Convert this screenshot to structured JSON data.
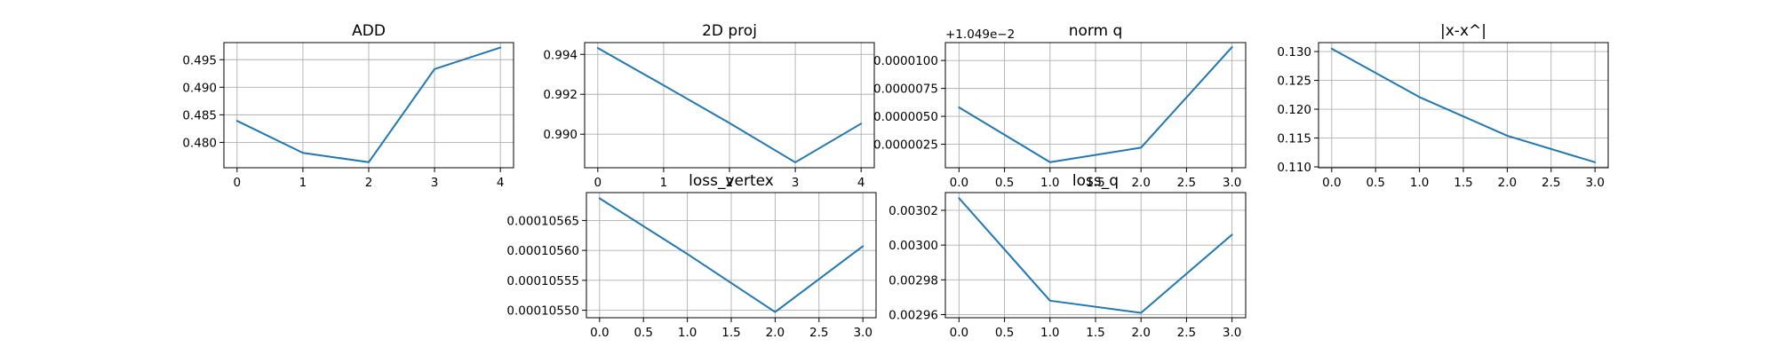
{
  "style": {
    "line_color": "#1f77b4",
    "grid_color": "#b0b0b0",
    "background": "#ffffff"
  },
  "chart_data": [
    {
      "type": "line",
      "title": "ADD",
      "x": [
        0,
        1,
        2,
        3,
        4
      ],
      "values": [
        0.4839,
        0.4781,
        0.4764,
        0.4933,
        0.4972
      ],
      "xlim": [
        -0.2,
        4.2
      ],
      "ylim": [
        0.4754,
        0.4981
      ],
      "xticks": [
        0,
        1,
        2,
        3,
        4
      ],
      "xtick_labels": [
        "0",
        "1",
        "2",
        "3",
        "4"
      ],
      "yticks": [
        0.48,
        0.485,
        0.49,
        0.495
      ],
      "ytick_labels": [
        "0.480",
        "0.485",
        "0.490",
        "0.495"
      ],
      "grid": true
    },
    {
      "type": "line",
      "title": "2D proj",
      "x": [
        0,
        1,
        2,
        3,
        4
      ],
      "values": [
        0.99432,
        0.99245,
        0.99056,
        0.98859,
        0.99053
      ],
      "xlim": [
        -0.2,
        4.2
      ],
      "ylim": [
        0.98832,
        0.99459
      ],
      "xticks": [
        0,
        1,
        2,
        3,
        4
      ],
      "xtick_labels": [
        "0",
        "1",
        "2",
        "3",
        "4"
      ],
      "yticks": [
        0.99,
        0.992,
        0.994
      ],
      "ytick_labels": [
        "0.990",
        "0.992",
        "0.994"
      ],
      "grid": true
    },
    {
      "type": "line",
      "title": "norm q",
      "offset_text": "+1.049e−2",
      "x": [
        0,
        1,
        2,
        3
      ],
      "values": [
        5.8e-06,
        9e-07,
        2.2e-06,
        1.12e-05
      ],
      "xlim": [
        -0.15,
        3.15
      ],
      "ylim": [
        4e-07,
        1.16e-05
      ],
      "xticks": [
        0,
        0.5,
        1,
        1.5,
        2,
        2.5,
        3
      ],
      "xtick_labels": [
        "0.0",
        "0.5",
        "1.0",
        "1.5",
        "2.0",
        "2.5",
        "3.0"
      ],
      "yticks": [
        2.5e-06,
        5e-06,
        7.5e-06,
        1e-05
      ],
      "ytick_labels": [
        "0.0000025",
        "0.0000050",
        "0.0000075",
        "0.0000100"
      ],
      "grid": true
    },
    {
      "type": "line",
      "title": "|x-x^|",
      "x": [
        0,
        1,
        2,
        3
      ],
      "values": [
        0.1305,
        0.1221,
        0.1154,
        0.1108
      ],
      "xlim": [
        -0.15,
        3.15
      ],
      "ylim": [
        0.10985,
        0.13155
      ],
      "xticks": [
        0,
        0.5,
        1,
        1.5,
        2,
        2.5,
        3
      ],
      "xtick_labels": [
        "0.0",
        "0.5",
        "1.0",
        "1.5",
        "2.0",
        "2.5",
        "3.0"
      ],
      "yticks": [
        0.11,
        0.115,
        0.12,
        0.125,
        0.13
      ],
      "ytick_labels": [
        "0.110",
        "0.115",
        "0.120",
        "0.125",
        "0.130"
      ],
      "grid": true
    },
    {
      "type": "line",
      "title": "loss_vertex",
      "x": [
        0,
        1,
        2,
        3
      ],
      "values": [
        0.000105687,
        0.000105594,
        0.000105497,
        0.000105607
      ],
      "xlim": [
        -0.15,
        3.15
      ],
      "ylim": [
        0.0001054875,
        0.0001056966
      ],
      "xticks": [
        0,
        0.5,
        1,
        1.5,
        2,
        2.5,
        3
      ],
      "xtick_labels": [
        "0.0",
        "0.5",
        "1.0",
        "1.5",
        "2.0",
        "2.5",
        "3.0"
      ],
      "yticks": [
        0.0001055,
        0.00010555,
        0.0001056,
        0.00010565
      ],
      "ytick_labels": [
        "0.00010550",
        "0.00010555",
        "0.00010560",
        "0.00010565"
      ],
      "grid": true
    },
    {
      "type": "line",
      "title": "loss_q",
      "x": [
        0,
        1,
        2,
        3
      ],
      "values": [
        0.003027,
        0.002968,
        0.002961,
        0.003006
      ],
      "xlim": [
        -0.15,
        3.15
      ],
      "ylim": [
        0.0029582,
        0.0030302
      ],
      "xticks": [
        0,
        0.5,
        1,
        1.5,
        2,
        2.5,
        3
      ],
      "xtick_labels": [
        "0.0",
        "0.5",
        "1.0",
        "1.5",
        "2.0",
        "2.5",
        "3.0"
      ],
      "yticks": [
        0.00296,
        0.00298,
        0.003,
        0.00302
      ],
      "ytick_labels": [
        "0.00296",
        "0.00298",
        "0.00300",
        "0.00302"
      ],
      "grid": true
    }
  ]
}
